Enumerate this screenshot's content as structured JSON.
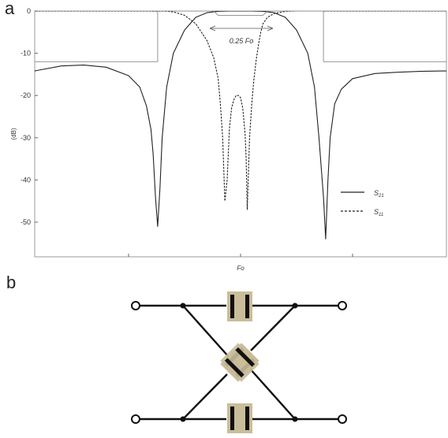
{
  "panels": {
    "a": "a",
    "b": "b"
  },
  "chart_data": {
    "type": "line",
    "title": "",
    "xlabel": "Fo",
    "ylabel": "(dB)",
    "ylim": [
      -54,
      0
    ],
    "x_tick_labels": [],
    "y_ticks": [
      0,
      -10,
      -20,
      -30,
      -40,
      -50
    ],
    "grid": false,
    "legend_placement": "right",
    "legend": [
      {
        "style": "solid",
        "label_base": "S",
        "label_sub": "21"
      },
      {
        "style": "dashed",
        "label_base": "S",
        "label_sub": "11"
      }
    ],
    "annotation": "0.25 Fo",
    "series": [
      {
        "name": "S21",
        "style": "solid",
        "x": [
          -1.0,
          -0.9,
          -0.8,
          -0.7,
          -0.6,
          -0.5,
          -0.45,
          -0.42,
          -0.4,
          -0.39,
          -0.38,
          -0.37,
          -0.36,
          -0.35,
          -0.33,
          -0.3,
          -0.25,
          -0.2,
          -0.15,
          -0.1,
          -0.05,
          0.0,
          0.05,
          0.1,
          0.15,
          0.2,
          0.25,
          0.3,
          0.33,
          0.35,
          0.37,
          0.38,
          0.39,
          0.4,
          0.42,
          0.45,
          0.5,
          0.6,
          0.7,
          0.8,
          0.9,
          1.0
        ],
        "y": [
          -15.0,
          -14.0,
          -13.0,
          -12.8,
          -13.3,
          -15.3,
          -18.0,
          -22.5,
          -28.0,
          -34.0,
          -44.0,
          -51.0,
          -42.0,
          -30.0,
          -18.0,
          -10.0,
          -4.5,
          -1.5,
          -0.4,
          -0.05,
          0.0,
          0.0,
          0.0,
          -0.05,
          -0.4,
          -1.5,
          -4.5,
          -10.0,
          -18.0,
          -30.0,
          -44.0,
          -54.0,
          -40.0,
          -30.0,
          -22.0,
          -18.5,
          -16.0,
          -14.8,
          -14.5,
          -14.3,
          -14.2,
          -14.2
        ]
      },
      {
        "name": "S11",
        "style": "dashed",
        "x": [
          -1.0,
          -0.6,
          -0.4,
          -0.33,
          -0.3,
          -0.25,
          -0.2,
          -0.15,
          -0.12,
          -0.1,
          -0.09,
          -0.08,
          -0.07,
          -0.06,
          -0.05,
          -0.04,
          -0.03,
          -0.02,
          -0.01,
          0.0,
          0.01,
          0.02,
          0.025,
          0.03,
          0.04,
          0.05,
          0.06,
          0.07,
          0.08,
          0.09,
          0.1,
          0.12,
          0.15,
          0.2,
          0.25,
          0.3,
          0.33,
          0.4,
          0.6,
          1.0
        ],
        "y": [
          0.0,
          0.0,
          0.0,
          -0.05,
          -0.2,
          -1.0,
          -3.0,
          -7.0,
          -11.0,
          -16.0,
          -22.0,
          -30.0,
          -45.0,
          -40.0,
          -28.0,
          -23.0,
          -21.0,
          -20.0,
          -20.0,
          -20.5,
          -23.0,
          -29.0,
          -35.0,
          -47.0,
          -30.0,
          -22.0,
          -16.0,
          -11.5,
          -8.0,
          -5.0,
          -3.0,
          -1.5,
          -0.6,
          -0.1,
          0.0,
          0.0,
          0.0,
          0.0,
          0.0,
          0.0
        ]
      },
      {
        "name": "",
        "style": "mask",
        "x": [
          -1.0,
          -0.37,
          -0.37,
          -0.12,
          -0.1,
          0.1,
          0.12,
          0.37,
          0.37,
          1.0
        ],
        "y": [
          -12.0,
          -12.0,
          0.0,
          0.0,
          -1.0,
          -1.0,
          0.0,
          0.0,
          -12.0,
          -12.0
        ]
      }
    ]
  }
}
